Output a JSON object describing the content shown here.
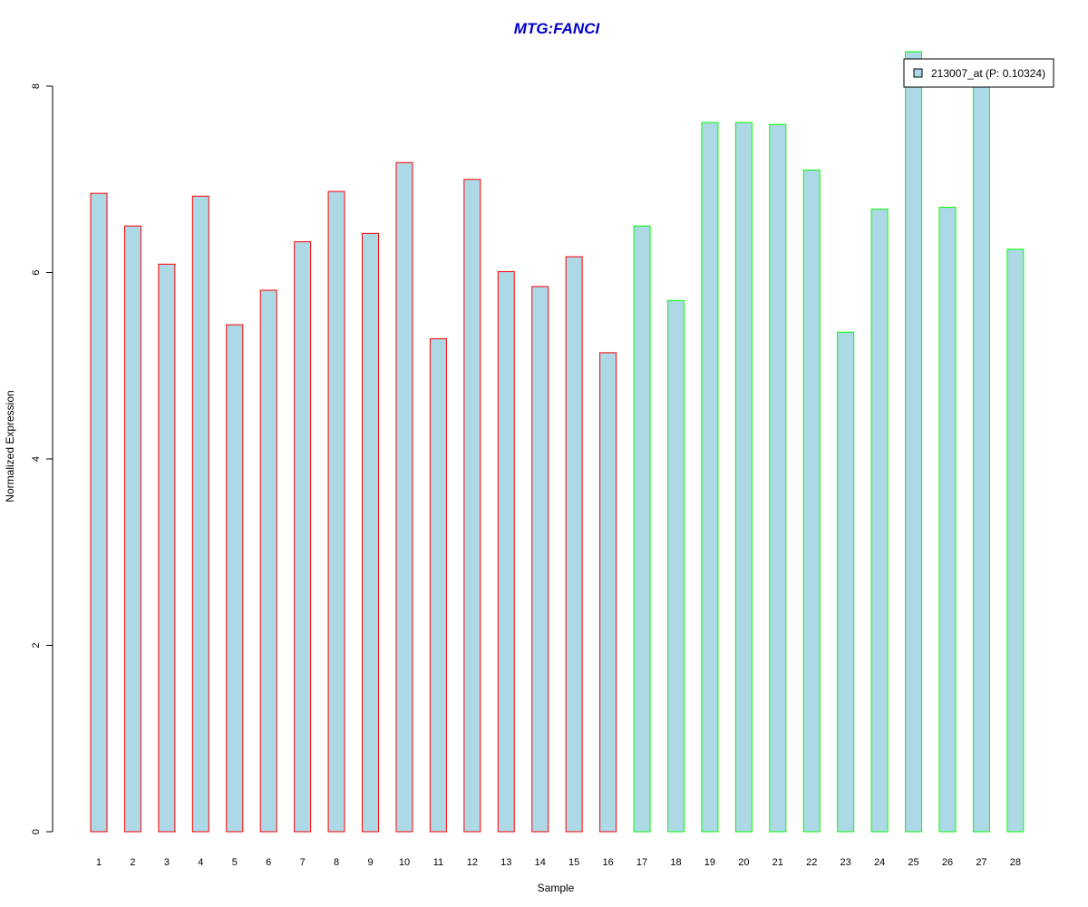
{
  "chart_data": {
    "type": "bar",
    "title": "MTG:FANCI",
    "xlabel": "Sample",
    "ylabel": "Normalized Expression",
    "categories": [
      "1",
      "2",
      "3",
      "4",
      "5",
      "6",
      "7",
      "8",
      "9",
      "10",
      "11",
      "12",
      "13",
      "14",
      "15",
      "16",
      "17",
      "18",
      "19",
      "20",
      "21",
      "22",
      "23",
      "24",
      "25",
      "26",
      "27",
      "28"
    ],
    "series": [
      {
        "name": "213007_at (P: 0.10324)",
        "values": [
          6.85,
          6.5,
          6.09,
          6.82,
          5.44,
          5.81,
          6.33,
          6.87,
          6.42,
          7.18,
          5.29,
          7.0,
          6.01,
          5.85,
          6.17,
          5.14,
          6.5,
          5.7,
          7.61,
          7.61,
          7.59,
          7.1,
          5.36,
          6.68,
          8.37,
          6.7,
          8.1,
          6.25
        ]
      }
    ],
    "yticks": [
      0,
      2,
      4,
      6,
      8
    ],
    "ylim": [
      0,
      8.3
    ],
    "colors": {
      "fill": "#add8e6",
      "group1_border": "#ff0000",
      "group2_border": "#00ff00",
      "title": "#0000cc"
    },
    "groups": {
      "group1_count": 16
    },
    "legend_placement": "top-right",
    "grid": false
  }
}
